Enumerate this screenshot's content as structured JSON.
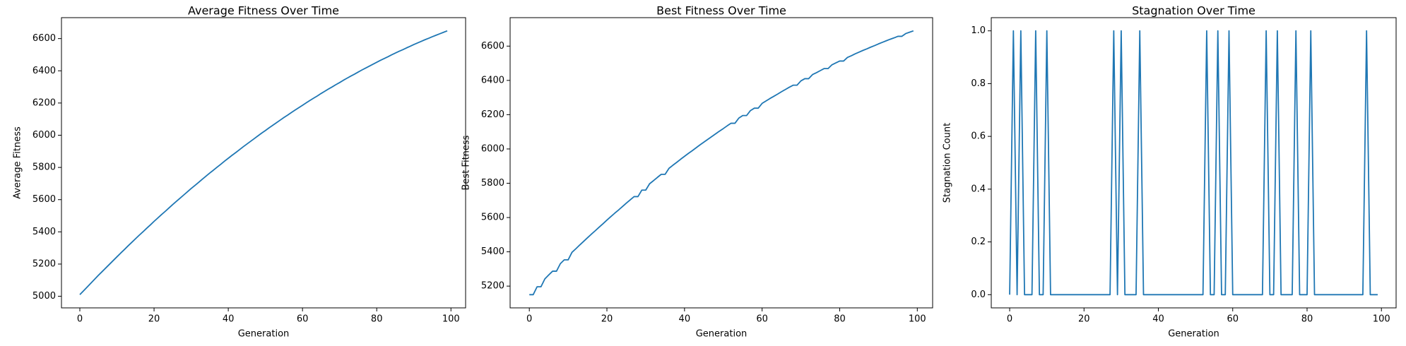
{
  "chart_data": [
    {
      "type": "line",
      "title": "Average Fitness Over Time",
      "xlabel": "Generation",
      "ylabel": "Average Fitness",
      "color": "#1f77b4",
      "x": [
        0,
        1,
        2,
        3,
        4,
        5,
        6,
        7,
        8,
        9,
        10,
        11,
        12,
        13,
        14,
        15,
        16,
        17,
        18,
        19,
        20,
        21,
        22,
        23,
        24,
        25,
        26,
        27,
        28,
        29,
        30,
        31,
        32,
        33,
        34,
        35,
        36,
        37,
        38,
        39,
        40,
        41,
        42,
        43,
        44,
        45,
        46,
        47,
        48,
        49,
        50,
        51,
        52,
        53,
        54,
        55,
        56,
        57,
        58,
        59,
        60,
        61,
        62,
        63,
        64,
        65,
        66,
        67,
        68,
        69,
        70,
        71,
        72,
        73,
        74,
        75,
        76,
        77,
        78,
        79,
        80,
        81,
        82,
        83,
        84,
        85,
        86,
        87,
        88,
        89,
        90,
        91,
        92,
        93,
        94,
        95,
        96,
        97,
        98,
        99
      ],
      "values": [
        5010,
        5034,
        5058,
        5082,
        5106,
        5130,
        5153,
        5176,
        5199,
        5222,
        5245,
        5268,
        5290,
        5313,
        5335,
        5357,
        5379,
        5400,
        5422,
        5443,
        5465,
        5486,
        5507,
        5527,
        5548,
        5569,
        5589,
        5609,
        5629,
        5649,
        5669,
        5688,
        5707,
        5727,
        5746,
        5765,
        5783,
        5802,
        5820,
        5839,
        5857,
        5875,
        5892,
        5910,
        5928,
        5945,
        5962,
        5979,
        5996,
        6013,
        6029,
        6046,
        6062,
        6078,
        6094,
        6110,
        6125,
        6141,
        6156,
        6171,
        6186,
        6201,
        6216,
        6230,
        6244,
        6259,
        6273,
        6287,
        6300,
        6314,
        6327,
        6341,
        6354,
        6367,
        6379,
        6392,
        6405,
        6417,
        6429,
        6441,
        6453,
        6465,
        6476,
        6487,
        6499,
        6510,
        6521,
        6531,
        6542,
        6552,
        6563,
        6573,
        6583,
        6593,
        6602,
        6612,
        6621,
        6630,
        6639,
        6648
      ],
      "xlim": [
        -4.95,
        103.95
      ],
      "ylim": [
        4928,
        6730
      ],
      "xticks": [
        0,
        20,
        40,
        60,
        80,
        100
      ],
      "yticks": [
        5000,
        5200,
        5400,
        5600,
        5800,
        6000,
        6200,
        6400,
        6600
      ]
    },
    {
      "type": "line",
      "title": "Best Fitness Over Time",
      "xlabel": "Generation",
      "ylabel": "Best Fitness",
      "color": "#1f77b4",
      "x": [
        0,
        1,
        2,
        3,
        4,
        5,
        6,
        7,
        8,
        9,
        10,
        11,
        12,
        13,
        14,
        15,
        16,
        17,
        18,
        19,
        20,
        21,
        22,
        23,
        24,
        25,
        26,
        27,
        28,
        29,
        30,
        31,
        32,
        33,
        34,
        35,
        36,
        37,
        38,
        39,
        40,
        41,
        42,
        43,
        44,
        45,
        46,
        47,
        48,
        49,
        50,
        51,
        52,
        53,
        54,
        55,
        56,
        57,
        58,
        59,
        60,
        61,
        62,
        63,
        64,
        65,
        66,
        67,
        68,
        69,
        70,
        71,
        72,
        73,
        74,
        75,
        76,
        77,
        78,
        79,
        80,
        81,
        82,
        83,
        84,
        85,
        86,
        87,
        88,
        89,
        90,
        91,
        92,
        93,
        94,
        95,
        96,
        97,
        98,
        99
      ],
      "values": [
        5150,
        5150,
        5196,
        5196,
        5242,
        5265,
        5287,
        5287,
        5331,
        5353,
        5353,
        5397,
        5418,
        5440,
        5461,
        5482,
        5503,
        5523,
        5544,
        5564,
        5585,
        5605,
        5625,
        5644,
        5664,
        5684,
        5703,
        5722,
        5722,
        5760,
        5760,
        5797,
        5815,
        5834,
        5852,
        5852,
        5887,
        5905,
        5922,
        5940,
        5957,
        5974,
        5990,
        6007,
        6024,
        6040,
        6056,
        6072,
        6088,
        6104,
        6119,
        6135,
        6150,
        6150,
        6180,
        6195,
        6195,
        6224,
        6238,
        6238,
        6266,
        6280,
        6294,
        6307,
        6320,
        6334,
        6347,
        6360,
        6372,
        6372,
        6397,
        6410,
        6410,
        6434,
        6445,
        6457,
        6469,
        6469,
        6491,
        6502,
        6513,
        6513,
        6534,
        6544,
        6555,
        6565,
        6575,
        6584,
        6594,
        6603,
        6613,
        6622,
        6631,
        6640,
        6648,
        6657,
        6657,
        6673,
        6681,
        6689
      ],
      "xlim": [
        -4.95,
        103.95
      ],
      "ylim": [
        5073,
        6766
      ],
      "xticks": [
        0,
        20,
        40,
        60,
        80,
        100
      ],
      "yticks": [
        5200,
        5400,
        5600,
        5800,
        6000,
        6200,
        6400,
        6600
      ]
    },
    {
      "type": "line",
      "title": "Stagnation Over Time",
      "xlabel": "Generation",
      "ylabel": "Stagnation Count",
      "color": "#1f77b4",
      "x": [
        0,
        1,
        2,
        3,
        4,
        5,
        6,
        7,
        8,
        9,
        10,
        11,
        12,
        13,
        14,
        15,
        16,
        17,
        18,
        19,
        20,
        21,
        22,
        23,
        24,
        25,
        26,
        27,
        28,
        29,
        30,
        31,
        32,
        33,
        34,
        35,
        36,
        37,
        38,
        39,
        40,
        41,
        42,
        43,
        44,
        45,
        46,
        47,
        48,
        49,
        50,
        51,
        52,
        53,
        54,
        55,
        56,
        57,
        58,
        59,
        60,
        61,
        62,
        63,
        64,
        65,
        66,
        67,
        68,
        69,
        70,
        71,
        72,
        73,
        74,
        75,
        76,
        77,
        78,
        79,
        80,
        81,
        82,
        83,
        84,
        85,
        86,
        87,
        88,
        89,
        90,
        91,
        92,
        93,
        94,
        95,
        96,
        97,
        98,
        99
      ],
      "values": [
        0,
        1,
        0,
        1,
        0,
        0,
        0,
        1,
        0,
        0,
        1,
        0,
        0,
        0,
        0,
        0,
        0,
        0,
        0,
        0,
        0,
        0,
        0,
        0,
        0,
        0,
        0,
        0,
        1,
        0,
        1,
        0,
        0,
        0,
        0,
        1,
        0,
        0,
        0,
        0,
        0,
        0,
        0,
        0,
        0,
        0,
        0,
        0,
        0,
        0,
        0,
        0,
        0,
        1,
        0,
        0,
        1,
        0,
        0,
        1,
        0,
        0,
        0,
        0,
        0,
        0,
        0,
        0,
        0,
        1,
        0,
        0,
        1,
        0,
        0,
        0,
        0,
        1,
        0,
        0,
        0,
        1,
        0,
        0,
        0,
        0,
        0,
        0,
        0,
        0,
        0,
        0,
        0,
        0,
        0,
        0,
        1,
        0,
        0,
        0
      ],
      "xlim": [
        -4.95,
        103.95
      ],
      "ylim": [
        -0.05,
        1.05
      ],
      "xticks": [
        0,
        20,
        40,
        60,
        80,
        100
      ],
      "yticks": [
        {
          "value": 0,
          "label": "0.0"
        },
        {
          "value": 0.2,
          "label": "0.2"
        },
        {
          "value": 0.4,
          "label": "0.4"
        },
        {
          "value": 0.6,
          "label": "0.6"
        },
        {
          "value": 0.8,
          "label": "0.8"
        },
        {
          "value": 1,
          "label": "1.0"
        }
      ]
    }
  ]
}
